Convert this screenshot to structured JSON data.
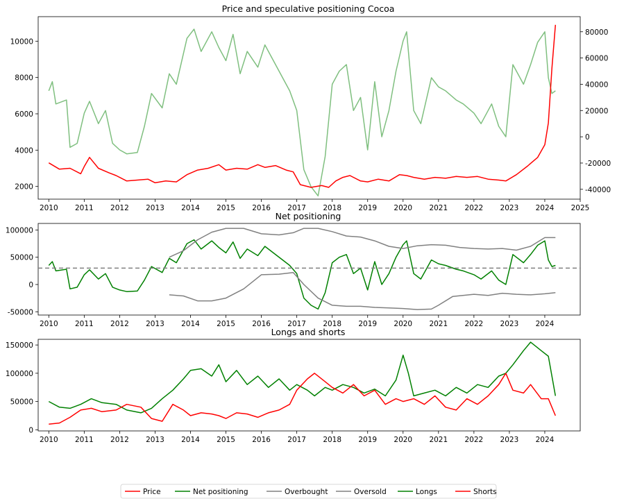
{
  "chart_data": [
    {
      "type": "line",
      "title": "Price and speculative positioning Cocoa",
      "xlabel": "",
      "ylabel": "",
      "x_ticks": [
        "2010",
        "2011",
        "2012",
        "2013",
        "2014",
        "2015",
        "2016",
        "2017",
        "2018",
        "2019",
        "2020",
        "2021",
        "2022",
        "2023",
        "2024",
        "2025"
      ],
      "xlim": [
        2009.7,
        2025.0
      ],
      "y_left_ticks": [
        "2000",
        "4000",
        "6000",
        "8000",
        "10000"
      ],
      "ylim_left": [
        1300,
        11350
      ],
      "y_right_ticks": [
        "-40000",
        "-20000",
        "0",
        "20000",
        "40000",
        "60000",
        "80000"
      ],
      "ylim_right": [
        -47500,
        91500
      ],
      "grid": false,
      "series": [
        {
          "name": "Price",
          "axis": "left",
          "color": "#ff0000",
          "x": [
            2010.0,
            2010.3,
            2010.6,
            2010.9,
            2011.0,
            2011.15,
            2011.4,
            2011.7,
            2011.9,
            2012.2,
            2012.5,
            2012.8,
            2013.0,
            2013.3,
            2013.6,
            2013.9,
            2014.2,
            2014.5,
            2014.8,
            2015.0,
            2015.3,
            2015.6,
            2015.9,
            2016.1,
            2016.4,
            2016.7,
            2016.9,
            2017.1,
            2017.4,
            2017.7,
            2017.9,
            2018.1,
            2018.3,
            2018.5,
            2018.8,
            2019.0,
            2019.3,
            2019.6,
            2019.9,
            2020.1,
            2020.3,
            2020.6,
            2020.9,
            2021.2,
            2021.5,
            2021.8,
            2022.1,
            2022.4,
            2022.7,
            2022.9,
            2023.2,
            2023.5,
            2023.8,
            2024.0,
            2024.1,
            2024.2,
            2024.3
          ],
          "y": [
            3300,
            2950,
            3000,
            2700,
            3100,
            3600,
            3000,
            2750,
            2600,
            2300,
            2350,
            2400,
            2200,
            2300,
            2250,
            2650,
            2900,
            3000,
            3200,
            2900,
            3000,
            2950,
            3200,
            3050,
            3150,
            2900,
            2800,
            2100,
            1950,
            2050,
            1950,
            2300,
            2500,
            2600,
            2300,
            2250,
            2400,
            2300,
            2650,
            2600,
            2500,
            2400,
            2500,
            2450,
            2550,
            2500,
            2550,
            2400,
            2350,
            2300,
            2650,
            3100,
            3600,
            4300,
            5500,
            8500,
            10900
          ]
        },
        {
          "name": "Net positioning (right axis)",
          "axis": "right",
          "color": "#7fbf7f",
          "x": [
            2010.0,
            2010.1,
            2010.2,
            2010.5,
            2010.6,
            2010.8,
            2011.0,
            2011.15,
            2011.4,
            2011.6,
            2011.8,
            2012.0,
            2012.2,
            2012.5,
            2012.7,
            2012.9,
            2013.2,
            2013.4,
            2013.6,
            2013.9,
            2014.1,
            2014.3,
            2014.6,
            2014.8,
            2015.0,
            2015.2,
            2015.4,
            2015.6,
            2015.9,
            2016.1,
            2016.3,
            2016.6,
            2016.8,
            2017.0,
            2017.2,
            2017.4,
            2017.6,
            2017.8,
            2018.0,
            2018.2,
            2018.4,
            2018.6,
            2018.8,
            2019.0,
            2019.2,
            2019.4,
            2019.6,
            2019.8,
            2020.0,
            2020.1,
            2020.3,
            2020.5,
            2020.8,
            2021.0,
            2021.2,
            2021.5,
            2021.7,
            2022.0,
            2022.2,
            2022.5,
            2022.7,
            2022.9,
            2023.1,
            2023.4,
            2023.6,
            2023.8,
            2024.0,
            2024.1,
            2024.2,
            2024.3
          ],
          "y": [
            35000,
            42000,
            25000,
            28000,
            -8000,
            -5000,
            18000,
            27000,
            10000,
            20000,
            -5000,
            -10000,
            -13000,
            -12000,
            8000,
            33000,
            22000,
            48000,
            40000,
            75000,
            82000,
            65000,
            80000,
            68000,
            58000,
            78000,
            48000,
            65000,
            53000,
            70000,
            60000,
            45000,
            35000,
            20000,
            -25000,
            -38000,
            -45000,
            -15000,
            40000,
            50000,
            55000,
            20000,
            30000,
            -10000,
            42000,
            0,
            20000,
            50000,
            73000,
            80000,
            20000,
            10000,
            45000,
            38000,
            35000,
            28000,
            25000,
            18000,
            10000,
            25000,
            8000,
            0,
            55000,
            40000,
            55000,
            72000,
            80000,
            45000,
            33000,
            35000
          ]
        }
      ]
    },
    {
      "type": "line",
      "title": "Net positioning",
      "xlabel": "",
      "ylabel": "",
      "x_ticks": [
        "2010",
        "2011",
        "2012",
        "2013",
        "2014",
        "2015",
        "2016",
        "2017",
        "2018",
        "2019",
        "2020",
        "2021",
        "2022",
        "2023",
        "2024"
      ],
      "xlim": [
        2009.7,
        2025.0
      ],
      "y_ticks": [
        "-50000",
        "0",
        "50000",
        "100000"
      ],
      "ylim": [
        -56000,
        112000
      ],
      "reference_line": {
        "y": 30000,
        "style": "dashed",
        "color": "#808080"
      },
      "grid": false,
      "series": [
        {
          "name": "Net positioning",
          "color": "#008000",
          "x": [
            2010.0,
            2010.1,
            2010.2,
            2010.5,
            2010.6,
            2010.8,
            2011.0,
            2011.15,
            2011.4,
            2011.6,
            2011.8,
            2012.0,
            2012.2,
            2012.5,
            2012.7,
            2012.9,
            2013.2,
            2013.4,
            2013.6,
            2013.9,
            2014.1,
            2014.3,
            2014.6,
            2014.8,
            2015.0,
            2015.2,
            2015.4,
            2015.6,
            2015.9,
            2016.1,
            2016.3,
            2016.6,
            2016.8,
            2017.0,
            2017.2,
            2017.4,
            2017.6,
            2017.8,
            2018.0,
            2018.2,
            2018.4,
            2018.6,
            2018.8,
            2019.0,
            2019.2,
            2019.4,
            2019.6,
            2019.8,
            2020.0,
            2020.1,
            2020.3,
            2020.5,
            2020.8,
            2021.0,
            2021.2,
            2021.5,
            2021.7,
            2022.0,
            2022.2,
            2022.5,
            2022.7,
            2022.9,
            2023.1,
            2023.4,
            2023.6,
            2023.8,
            2024.0,
            2024.1,
            2024.2,
            2024.3
          ],
          "y": [
            35000,
            42000,
            25000,
            28000,
            -8000,
            -5000,
            18000,
            27000,
            10000,
            20000,
            -5000,
            -10000,
            -13000,
            -12000,
            8000,
            33000,
            22000,
            48000,
            40000,
            75000,
            82000,
            65000,
            80000,
            68000,
            58000,
            78000,
            48000,
            65000,
            53000,
            70000,
            60000,
            45000,
            35000,
            20000,
            -25000,
            -38000,
            -45000,
            -15000,
            40000,
            50000,
            55000,
            20000,
            30000,
            -10000,
            42000,
            0,
            20000,
            50000,
            73000,
            80000,
            20000,
            10000,
            45000,
            38000,
            35000,
            28000,
            25000,
            18000,
            10000,
            25000,
            8000,
            0,
            55000,
            40000,
            55000,
            72000,
            80000,
            45000,
            33000,
            35000
          ]
        },
        {
          "name": "Overbought",
          "color": "#808080",
          "x": [
            2013.4,
            2013.8,
            2014.2,
            2014.6,
            2015.0,
            2015.5,
            2016.0,
            2016.5,
            2016.9,
            2017.2,
            2017.6,
            2018.0,
            2018.4,
            2018.8,
            2019.2,
            2019.6,
            2020.0,
            2020.4,
            2020.8,
            2021.2,
            2021.6,
            2022.0,
            2022.4,
            2022.8,
            2023.2,
            2023.6,
            2024.0,
            2024.3
          ],
          "y": [
            50000,
            62000,
            82000,
            96000,
            103000,
            103000,
            93000,
            91000,
            95000,
            103000,
            103000,
            97000,
            89000,
            87000,
            80000,
            70000,
            66000,
            71000,
            73000,
            72000,
            68000,
            66000,
            65000,
            66000,
            63000,
            70000,
            86000,
            86000
          ]
        },
        {
          "name": "Oversold",
          "color": "#808080",
          "x": [
            2013.4,
            2013.8,
            2014.2,
            2014.6,
            2015.0,
            2015.5,
            2016.0,
            2016.5,
            2016.9,
            2017.2,
            2017.6,
            2018.0,
            2018.4,
            2018.8,
            2019.2,
            2019.6,
            2020.0,
            2020.4,
            2020.8,
            2021.0,
            2021.4,
            2022.0,
            2022.4,
            2022.8,
            2023.2,
            2023.6,
            2024.0,
            2024.3
          ],
          "y": [
            -19000,
            -21000,
            -30000,
            -30000,
            -25000,
            -8000,
            18000,
            19000,
            22000,
            0,
            -25000,
            -38000,
            -40000,
            -40000,
            -42000,
            -43000,
            -44000,
            -46000,
            -45000,
            -38000,
            -22000,
            -18000,
            -20000,
            -16000,
            -18000,
            -19000,
            -17000,
            -15000
          ]
        }
      ]
    },
    {
      "type": "line",
      "title": "Longs and shorts",
      "xlabel": "",
      "ylabel": "",
      "x_ticks": [
        "2010",
        "2011",
        "2012",
        "2013",
        "2014",
        "2015",
        "2016",
        "2017",
        "2018",
        "2019",
        "2020",
        "2021",
        "2022",
        "2023",
        "2024"
      ],
      "xlim": [
        2009.7,
        2025.0
      ],
      "y_ticks": [
        "0",
        "50000",
        "100000",
        "150000"
      ],
      "ylim": [
        -2000,
        160000
      ],
      "grid": false,
      "series": [
        {
          "name": "Longs",
          "color": "#008000",
          "x": [
            2010.0,
            2010.3,
            2010.6,
            2010.9,
            2011.2,
            2011.5,
            2011.9,
            2012.2,
            2012.6,
            2012.9,
            2013.2,
            2013.5,
            2013.8,
            2014.0,
            2014.3,
            2014.6,
            2014.8,
            2015.0,
            2015.3,
            2015.6,
            2015.9,
            2016.2,
            2016.5,
            2016.8,
            2017.0,
            2017.3,
            2017.5,
            2017.8,
            2018.0,
            2018.3,
            2018.6,
            2018.9,
            2019.2,
            2019.5,
            2019.8,
            2020.0,
            2020.15,
            2020.3,
            2020.6,
            2020.9,
            2021.2,
            2021.5,
            2021.8,
            2022.1,
            2022.4,
            2022.7,
            2022.9,
            2023.1,
            2023.4,
            2023.6,
            2023.9,
            2024.1,
            2024.3
          ],
          "y": [
            50000,
            40000,
            38000,
            45000,
            55000,
            48000,
            45000,
            35000,
            30000,
            38000,
            55000,
            70000,
            90000,
            105000,
            108000,
            95000,
            115000,
            85000,
            105000,
            80000,
            95000,
            75000,
            90000,
            70000,
            80000,
            70000,
            60000,
            75000,
            70000,
            80000,
            75000,
            65000,
            72000,
            60000,
            88000,
            132000,
            100000,
            60000,
            65000,
            70000,
            60000,
            75000,
            65000,
            80000,
            75000,
            95000,
            100000,
            115000,
            140000,
            155000,
            140000,
            130000,
            60000
          ]
        },
        {
          "name": "Shorts",
          "color": "#ff0000",
          "x": [
            2010.0,
            2010.3,
            2010.6,
            2010.9,
            2011.2,
            2011.5,
            2011.9,
            2012.2,
            2012.6,
            2012.9,
            2013.2,
            2013.5,
            2013.8,
            2014.0,
            2014.3,
            2014.6,
            2014.8,
            2015.0,
            2015.3,
            2015.6,
            2015.9,
            2016.2,
            2016.5,
            2016.8,
            2017.0,
            2017.3,
            2017.5,
            2017.8,
            2018.0,
            2018.3,
            2018.6,
            2018.9,
            2019.2,
            2019.5,
            2019.8,
            2020.0,
            2020.3,
            2020.6,
            2020.9,
            2021.2,
            2021.5,
            2021.8,
            2022.1,
            2022.4,
            2022.7,
            2022.9,
            2023.1,
            2023.4,
            2023.6,
            2023.9,
            2024.1,
            2024.3
          ],
          "y": [
            10000,
            12000,
            22000,
            35000,
            38000,
            32000,
            35000,
            45000,
            40000,
            20000,
            15000,
            45000,
            35000,
            25000,
            30000,
            28000,
            25000,
            20000,
            30000,
            28000,
            22000,
            30000,
            35000,
            45000,
            70000,
            90000,
            100000,
            85000,
            75000,
            65000,
            80000,
            60000,
            70000,
            45000,
            55000,
            50000,
            55000,
            45000,
            60000,
            40000,
            35000,
            55000,
            45000,
            60000,
            80000,
            100000,
            70000,
            65000,
            80000,
            55000,
            55000,
            25000
          ]
        }
      ]
    }
  ],
  "legend": {
    "placement": "bottom-center",
    "entries": [
      {
        "label": "Price",
        "color": "#ff0000"
      },
      {
        "label": "Net positioning",
        "color": "#008000"
      },
      {
        "label": "Overbought",
        "color": "#808080"
      },
      {
        "label": "Oversold",
        "color": "#808080"
      },
      {
        "label": "Longs",
        "color": "#008000"
      },
      {
        "label": "Shorts",
        "color": "#ff0000"
      }
    ]
  }
}
